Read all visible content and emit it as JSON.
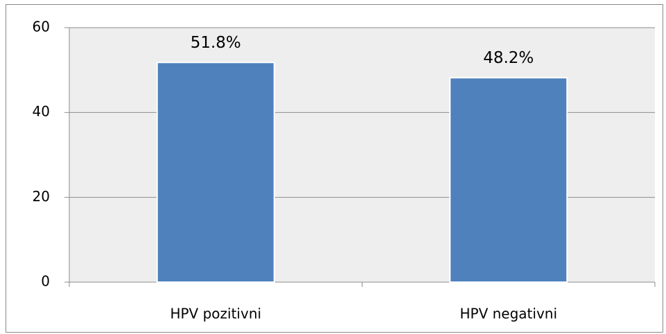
{
  "chart_data": {
    "type": "bar",
    "categories": [
      "HPV pozitivni",
      "HPV negativni"
    ],
    "values": [
      51.8,
      48.2
    ],
    "value_labels": [
      "51.8%",
      "48.2%"
    ],
    "color": "#4f81bd",
    "ylim": [
      0,
      60
    ],
    "yticks": [
      0,
      20,
      40,
      60
    ],
    "grid": true
  }
}
